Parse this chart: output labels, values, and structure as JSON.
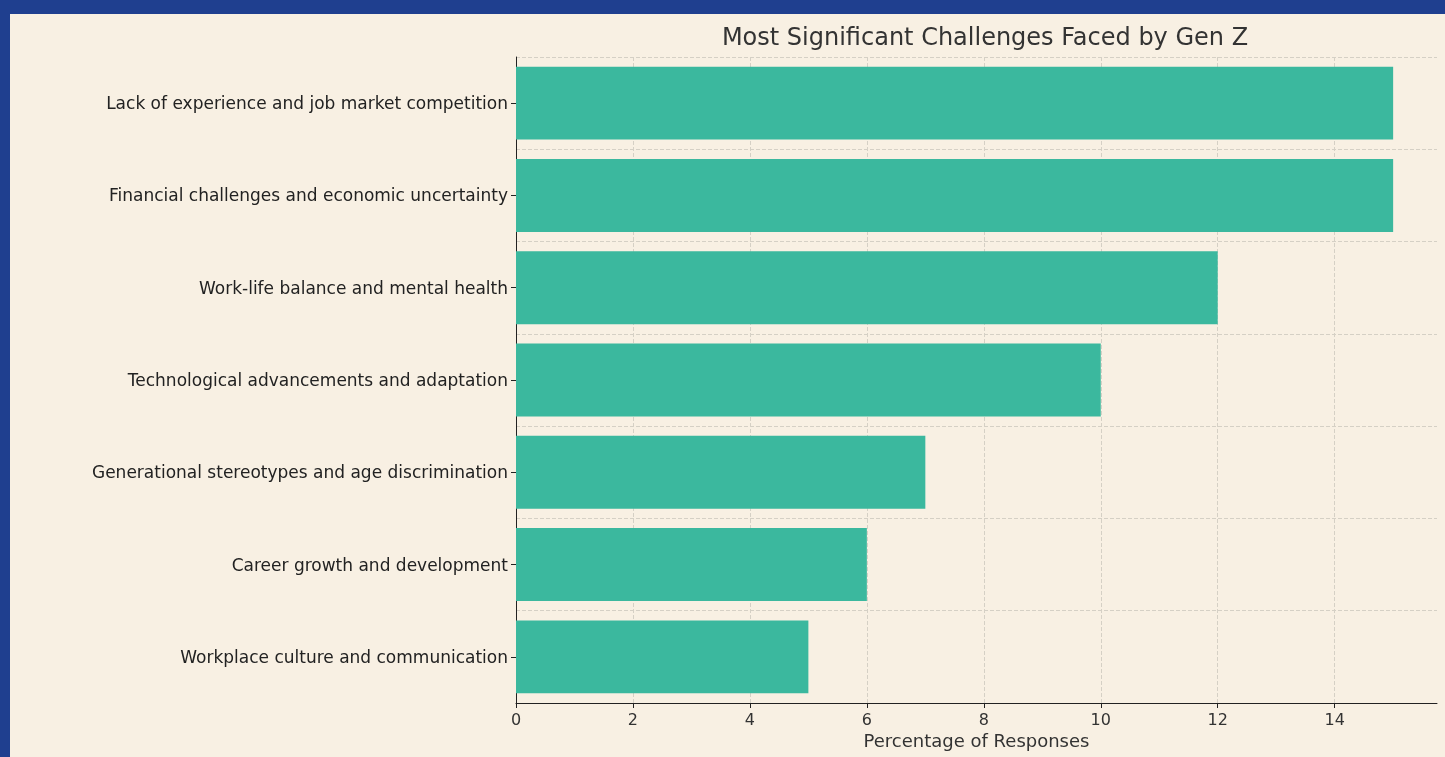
{
  "chart_data": {
    "type": "bar",
    "orientation": "horizontal",
    "title": "Most Significant Challenges Faced by Gen Z",
    "xlabel": "Percentage of Responses",
    "categories": [
      "Lack of experience and job market competition",
      "Financial challenges and economic uncertainty",
      "Work-life balance and mental health",
      "Technological advancements and adaptation",
      "Generational stereotypes and age discrimination",
      "Career growth and development",
      "Workplace culture and communication"
    ],
    "values": [
      15,
      15,
      12,
      10,
      7,
      6,
      5
    ],
    "color": "#3bb89e",
    "xlim": [
      0,
      15.75
    ],
    "xticks": [
      0,
      2,
      4,
      6,
      8,
      10,
      12,
      14
    ],
    "grid": true
  }
}
